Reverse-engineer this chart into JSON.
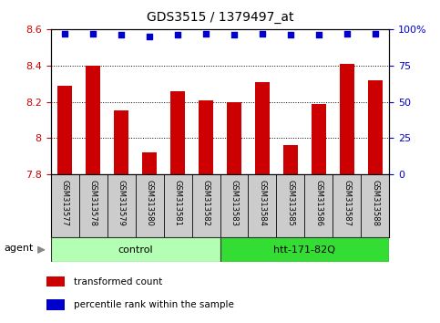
{
  "title": "GDS3515 / 1379497_at",
  "categories": [
    "GSM313577",
    "GSM313578",
    "GSM313579",
    "GSM313580",
    "GSM313581",
    "GSM313582",
    "GSM313583",
    "GSM313584",
    "GSM313585",
    "GSM313586",
    "GSM313587",
    "GSM313588"
  ],
  "bar_values": [
    8.29,
    8.4,
    8.15,
    7.92,
    8.26,
    8.21,
    8.2,
    8.31,
    7.96,
    8.19,
    8.41,
    8.32
  ],
  "percentile_values": [
    97,
    97,
    96,
    95,
    96,
    97,
    96,
    97,
    96,
    96,
    97,
    97
  ],
  "bar_color": "#cc0000",
  "percentile_color": "#0000cc",
  "ylim_left": [
    7.8,
    8.6
  ],
  "ylim_right": [
    0,
    100
  ],
  "yticks_left": [
    7.8,
    8.0,
    8.2,
    8.4,
    8.6
  ],
  "ytick_labels_left": [
    "7.8",
    "8",
    "8.2",
    "8.4",
    "8.6"
  ],
  "yticks_right": [
    0,
    25,
    50,
    75,
    100
  ],
  "ytick_labels_right": [
    "0",
    "25",
    "50",
    "75",
    "100%"
  ],
  "groups": [
    {
      "label": "control",
      "start": 0,
      "end": 6,
      "color": "#b3ffb3",
      "edge_color": "#333333"
    },
    {
      "label": "htt-171-82Q",
      "start": 6,
      "end": 12,
      "color": "#33dd33",
      "edge_color": "#333333"
    }
  ],
  "legend_items": [
    {
      "color": "#cc0000",
      "label": "transformed count"
    },
    {
      "color": "#0000cc",
      "label": "percentile rank within the sample"
    }
  ],
  "background_color": "#ffffff",
  "grid_color": "#000000",
  "tick_label_color_left": "#cc0000",
  "tick_label_color_right": "#0000cc",
  "bar_width": 0.5,
  "label_bg_color": "#cccccc",
  "agent_arrow_color": "#888888"
}
